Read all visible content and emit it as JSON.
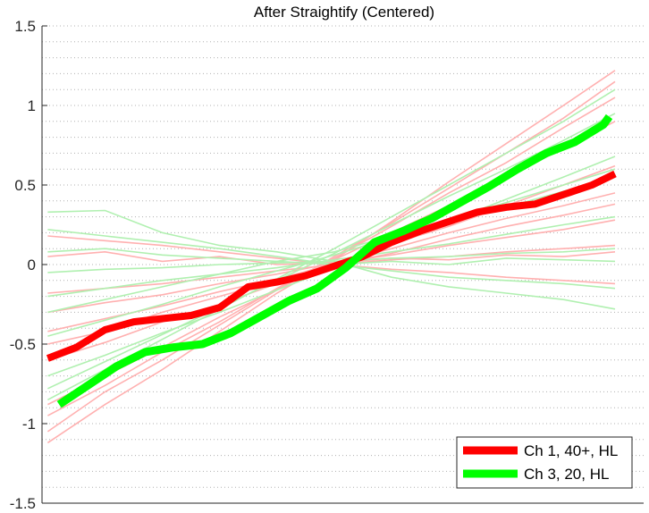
{
  "chart_data": {
    "type": "line",
    "title": "After Straightify (Centered)",
    "xlabel": "",
    "ylabel": "",
    "ylim": [
      -1.5,
      1.5
    ],
    "xlim": [
      0,
      105
    ],
    "yticks": [
      1.5,
      1,
      0.5,
      0,
      -0.5,
      -1,
      -1.5
    ],
    "ytick_labels": [
      "1.5",
      "1",
      "0.5",
      "0",
      "-0.5",
      "-1",
      "-1.5"
    ],
    "grid": "horizontal dotted, minor every 0.1",
    "legend_placement": "bottom-right",
    "colors": {
      "red": "#ff0000",
      "green": "#00ff00",
      "red_light": "#ffb0b0",
      "green_light": "#b0f0b0"
    },
    "series": [
      {
        "name": "Ch 1, 40+, HL",
        "color": "#ff0000",
        "x": [
          1,
          6,
          11,
          16,
          21,
          26,
          31,
          36,
          41,
          46,
          51,
          56,
          61,
          66,
          71,
          76,
          81,
          86,
          91,
          96,
          100
        ],
        "y": [
          -0.59,
          -0.52,
          -0.41,
          -0.36,
          -0.34,
          -0.32,
          -0.27,
          -0.14,
          -0.11,
          -0.07,
          -0.01,
          0.05,
          0.14,
          0.21,
          0.27,
          0.33,
          0.36,
          0.38,
          0.44,
          0.5,
          0.57
        ]
      },
      {
        "name": "Ch 3, 20, HL",
        "color": "#00ff00",
        "x": [
          3,
          8,
          13,
          18,
          23,
          28,
          33,
          38,
          43,
          48,
          53,
          58,
          63,
          68,
          73,
          78,
          83,
          88,
          93,
          98,
          99
        ],
        "y": [
          -0.88,
          -0.76,
          -0.64,
          -0.55,
          -0.52,
          -0.5,
          -0.43,
          -0.33,
          -0.23,
          -0.15,
          -0.02,
          0.14,
          0.21,
          0.29,
          0.39,
          0.49,
          0.6,
          0.7,
          0.77,
          0.88,
          0.93
        ]
      }
    ],
    "individual_traces": {
      "x": [
        1,
        11,
        21,
        31,
        41,
        51,
        61,
        71,
        81,
        91,
        100
      ],
      "red": [
        [
          -1.12,
          -0.88,
          -0.66,
          -0.42,
          -0.18,
          0.03,
          0.27,
          0.52,
          0.76,
          1.0,
          1.22
        ],
        [
          -1.05,
          -0.8,
          -0.6,
          -0.38,
          -0.16,
          0.05,
          0.26,
          0.48,
          0.7,
          0.92,
          1.15
        ],
        [
          -0.95,
          -0.76,
          -0.55,
          -0.36,
          -0.15,
          0.04,
          0.24,
          0.45,
          0.64,
          0.86,
          1.05
        ],
        [
          -0.88,
          -0.7,
          -0.52,
          -0.33,
          -0.16,
          0.03,
          0.2,
          0.37,
          0.55,
          0.73,
          0.9
        ],
        [
          -0.6,
          -0.49,
          -0.36,
          -0.25,
          -0.12,
          0.0,
          0.13,
          0.24,
          0.37,
          0.5,
          0.62
        ],
        [
          -0.5,
          -0.42,
          -0.3,
          -0.2,
          -0.1,
          0.01,
          0.1,
          0.2,
          0.29,
          0.37,
          0.45
        ],
        [
          -0.42,
          -0.34,
          -0.26,
          -0.17,
          -0.09,
          0.0,
          0.07,
          0.16,
          0.24,
          0.31,
          0.38
        ],
        [
          -0.3,
          -0.24,
          -0.19,
          -0.12,
          -0.06,
          0.01,
          0.06,
          0.12,
          0.17,
          0.22,
          0.28
        ],
        [
          -0.18,
          -0.15,
          -0.12,
          -0.08,
          -0.04,
          0.0,
          0.03,
          0.05,
          0.08,
          0.1,
          0.12
        ],
        [
          0.18,
          0.15,
          0.12,
          0.08,
          0.04,
          0.0,
          -0.03,
          -0.05,
          -0.08,
          -0.1,
          -0.12
        ],
        [
          0.05,
          0.08,
          0.02,
          0.05,
          0.0,
          0.01,
          0.04,
          0.03,
          0.06,
          0.05,
          0.08
        ]
      ],
      "green": [
        [
          0.33,
          0.34,
          0.2,
          0.12,
          0.08,
          0.02,
          -0.08,
          -0.14,
          -0.18,
          -0.22,
          -0.28
        ],
        [
          0.22,
          0.18,
          0.14,
          0.1,
          0.05,
          0.0,
          -0.04,
          -0.08,
          -0.1,
          -0.12,
          -0.15
        ],
        [
          0.08,
          0.1,
          0.06,
          0.04,
          0.02,
          0.0,
          0.02,
          0.0,
          0.04,
          0.03,
          0.02
        ],
        [
          -0.05,
          -0.03,
          -0.02,
          0.0,
          0.01,
          0.02,
          0.04,
          0.05,
          0.07,
          0.08,
          0.1
        ],
        [
          -0.2,
          -0.15,
          -0.1,
          -0.06,
          -0.02,
          0.03,
          0.08,
          0.13,
          0.19,
          0.25,
          0.3
        ],
        [
          -0.3,
          -0.22,
          -0.14,
          -0.06,
          0.02,
          0.08,
          0.18,
          0.27,
          0.36,
          0.46,
          0.55
        ],
        [
          -0.7,
          -0.57,
          -0.43,
          -0.3,
          -0.16,
          -0.02,
          0.13,
          0.27,
          0.41,
          0.55,
          0.68
        ],
        [
          -0.85,
          -0.66,
          -0.47,
          -0.28,
          -0.09,
          0.1,
          0.3,
          0.5,
          0.7,
          0.9,
          1.1
        ],
        [
          -0.78,
          -0.61,
          -0.44,
          -0.27,
          -0.1,
          0.07,
          0.25,
          0.43,
          0.6,
          0.78,
          0.95
        ],
        [
          -0.45,
          -0.35,
          -0.25,
          -0.14,
          -0.04,
          0.06,
          0.17,
          0.28,
          0.39,
          0.5,
          0.6
        ]
      ]
    }
  }
}
